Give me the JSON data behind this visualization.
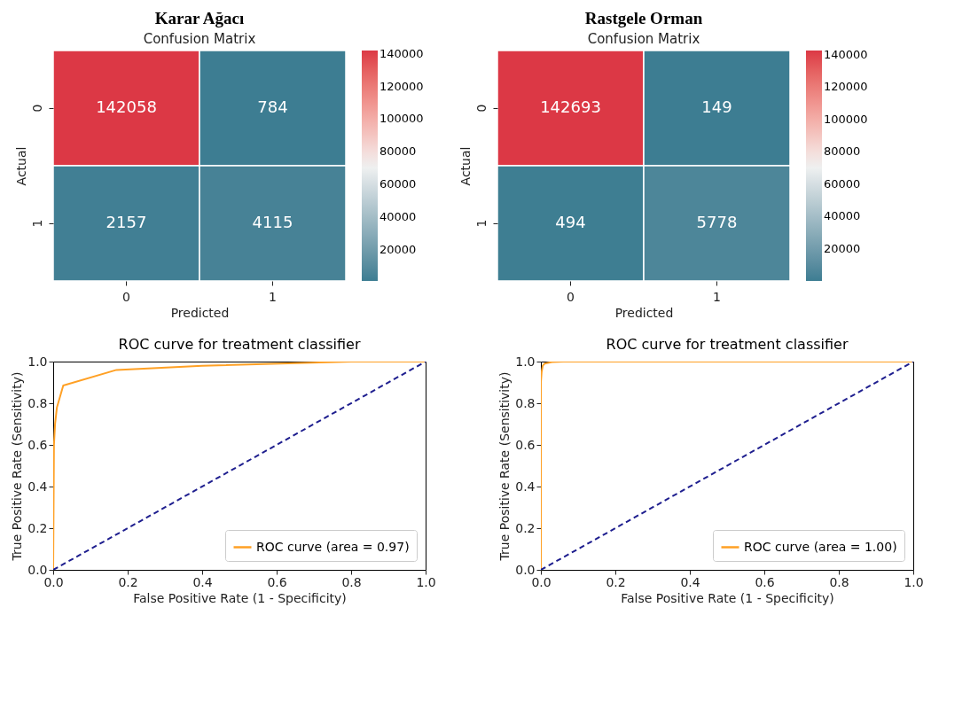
{
  "chart_data": [
    {
      "type": "heatmap",
      "title": "Karar Ağacı",
      "subtitle": "Confusion Matrix",
      "xlabel": "Predicted",
      "ylabel": "Actual",
      "categories": [
        "0",
        "1"
      ],
      "y_categories": [
        "0",
        "1"
      ],
      "cells": [
        [
          142058,
          784
        ],
        [
          2157,
          4115
        ]
      ],
      "data_labels": true,
      "clim": [
        784,
        142058
      ],
      "cticks": [
        20000,
        40000,
        60000,
        80000,
        100000,
        120000,
        140000
      ]
    },
    {
      "type": "heatmap",
      "title": "Rastgele Orman",
      "subtitle": "Confusion Matrix",
      "xlabel": "Predicted",
      "ylabel": "Actual",
      "categories": [
        "0",
        "1"
      ],
      "y_categories": [
        "0",
        "1"
      ],
      "cells": [
        [
          142693,
          149
        ],
        [
          494,
          5778
        ]
      ],
      "data_labels": true,
      "clim": [
        149,
        142693
      ],
      "cticks": [
        20000,
        40000,
        60000,
        80000,
        100000,
        120000,
        140000
      ]
    },
    {
      "type": "line",
      "title": "ROC curve for treatment classifier",
      "xlabel": "False Positive Rate (1 - Specificity)",
      "ylabel": "True Positive Rate (Sensitivity)",
      "series": [
        {
          "name": "ROC curve (area = 0.97)",
          "color": "#ffa024",
          "line_style": "solid",
          "x": [
            0,
            0.002,
            0.005,
            0.01,
            0.027,
            0.17,
            0.4,
            0.8,
            1
          ],
          "values": [
            0,
            0.6,
            0.7,
            0.78,
            0.885,
            0.96,
            0.98,
            1,
            1
          ]
        },
        {
          "color": "#1f1f8f",
          "line_style": "dashed",
          "x": [
            0,
            1
          ],
          "values": [
            0,
            1
          ]
        }
      ],
      "xlim": [
        0,
        1
      ],
      "ylim": [
        0,
        1
      ],
      "xticks": [
        {
          "value": 0,
          "label": "0.0"
        },
        {
          "value": 0.2,
          "label": "0.2"
        },
        {
          "value": 0.4,
          "label": "0.4"
        },
        {
          "value": 0.6,
          "label": "0.6"
        },
        {
          "value": 0.8,
          "label": "0.8"
        },
        {
          "value": 1,
          "label": "1.0"
        }
      ],
      "yticks": [
        {
          "value": 0,
          "label": "0.0"
        },
        {
          "value": 0.2,
          "label": "0.2"
        },
        {
          "value": 0.4,
          "label": "0.4"
        },
        {
          "value": 0.6,
          "label": "0.6"
        },
        {
          "value": 0.8,
          "label": "0.8"
        },
        {
          "value": 1,
          "label": "1.0"
        }
      ],
      "legend": "bottom right",
      "grid": false
    },
    {
      "type": "line",
      "title": "ROC curve for treatment classifier",
      "xlabel": "False Positive Rate (1 - Specificity)",
      "ylabel": "True Positive Rate (Sensitivity)",
      "series": [
        {
          "name": "ROC curve (area = 1.00)",
          "color": "#ffa024",
          "line_style": "solid",
          "x": [
            0,
            0,
            0.002,
            0.005,
            0.01,
            0.03,
            0.06,
            1
          ],
          "values": [
            0,
            0.9,
            0.95,
            0.98,
            0.99,
            0.998,
            1,
            1
          ]
        },
        {
          "color": "#1f1f8f",
          "line_style": "dashed",
          "x": [
            0,
            1
          ],
          "values": [
            0,
            1
          ]
        }
      ],
      "xlim": [
        0,
        1
      ],
      "ylim": [
        0,
        1
      ],
      "xticks": [
        {
          "value": 0,
          "label": "0.0"
        },
        {
          "value": 0.2,
          "label": "0.2"
        },
        {
          "value": 0.4,
          "label": "0.4"
        },
        {
          "value": 0.6,
          "label": "0.6"
        },
        {
          "value": 0.8,
          "label": "0.8"
        },
        {
          "value": 1,
          "label": "1.0"
        }
      ],
      "yticks": [
        {
          "value": 0,
          "label": "0.0"
        },
        {
          "value": 0.2,
          "label": "0.2"
        },
        {
          "value": 0.4,
          "label": "0.4"
        },
        {
          "value": 0.6,
          "label": "0.6"
        },
        {
          "value": 0.8,
          "label": "0.8"
        },
        {
          "value": 1,
          "label": "1.0"
        }
      ],
      "legend": "bottom right",
      "grid": false
    }
  ]
}
